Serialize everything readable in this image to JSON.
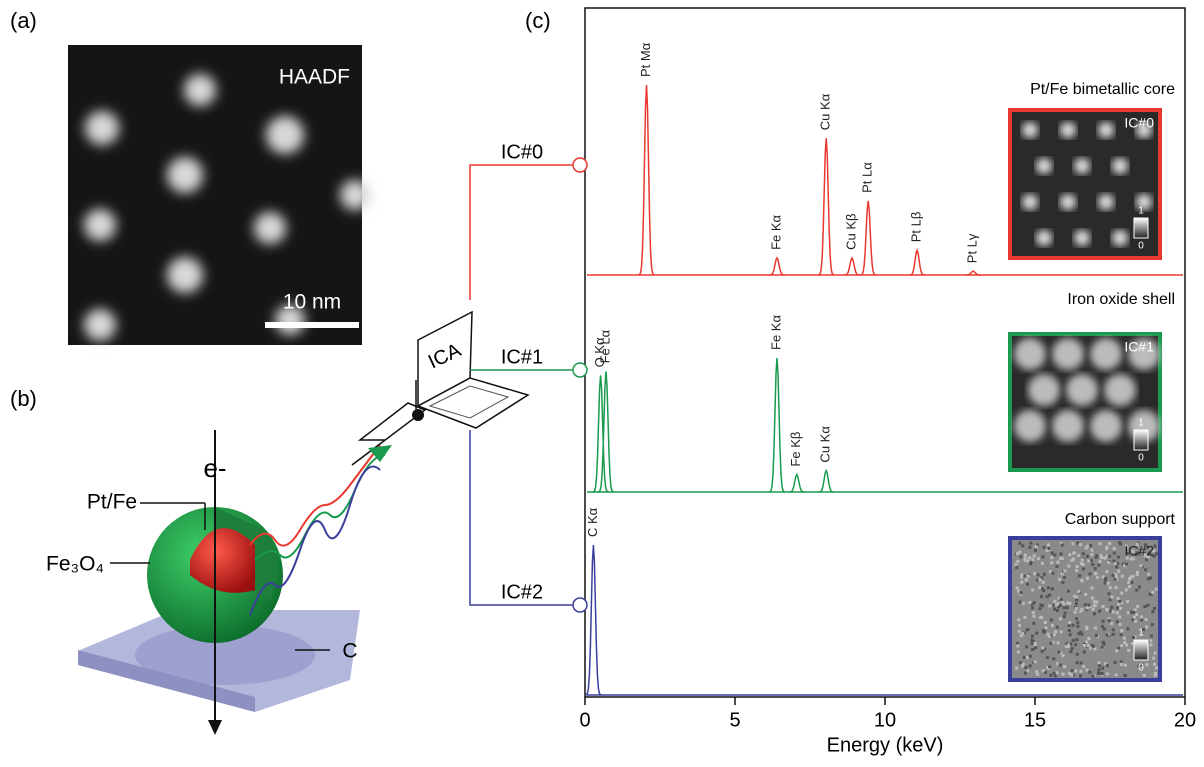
{
  "panel_labels": [
    "(a)",
    "(b)",
    "(c)"
  ],
  "panel_a": {
    "label": "HAADF",
    "scale_bar": "10 nm"
  },
  "panel_b": {
    "beam": "e-",
    "core": "Pt/Fe",
    "shell": "Fe₃O₄",
    "support": "C"
  },
  "computer": "ICA",
  "chart_data": {
    "type": "line",
    "xlabel": "Energy (keV)",
    "xlim": [
      0,
      20
    ],
    "xticks": [
      0,
      5,
      10,
      15,
      20
    ],
    "colorbar_ticks": [
      0,
      1
    ],
    "series": [
      {
        "name": "IC#0",
        "color": "#e8382f",
        "inset_title": "Pt/Fe bimetallic core",
        "x": [
          2.05,
          6.4,
          8.04,
          8.9,
          9.44,
          11.07,
          12.94
        ],
        "values": [
          100,
          9,
          72,
          9,
          39,
          13,
          2
        ],
        "peak_labels": [
          "Pt Mα",
          "Fe Kα",
          "Cu Kα",
          "Cu Kβ",
          "Pt Lα",
          "Pt Lβ",
          "Pt Lγ"
        ]
      },
      {
        "name": "IC#1",
        "color": "#1a9a4e",
        "inset_title": "Iron oxide shell",
        "x": [
          0.52,
          0.7,
          6.4,
          7.06,
          8.04
        ],
        "values": [
          87,
          90,
          100,
          13,
          16
        ],
        "peak_labels": [
          "O Kα",
          "Fe Lα",
          "Fe Kα",
          "Fe Kβ",
          "Cu Kα"
        ]
      },
      {
        "name": "IC#2",
        "color": "#3a3f9c",
        "inset_title": "Carbon support",
        "x": [
          0.28
        ],
        "values": [
          100
        ],
        "peak_labels": [
          "C Kα"
        ]
      }
    ]
  }
}
